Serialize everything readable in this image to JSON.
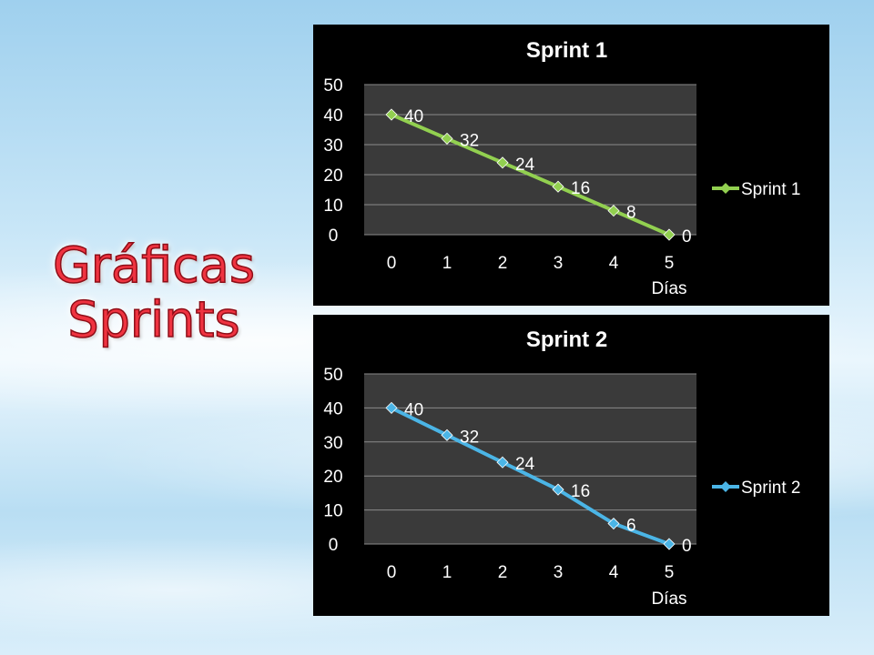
{
  "title": {
    "line1": "Gráficas",
    "line2": "Sprints"
  },
  "colors": {
    "title_fill": "#ef3340",
    "sprint1": "#92d050",
    "sprint2": "#4bb5e6",
    "plot_bg": "#3a3a3a",
    "panel_bg": "#000000"
  },
  "chart_data": [
    {
      "type": "line",
      "title": "Sprint 1",
      "xlabel": "Días",
      "ylabel": "",
      "x": [
        0,
        1,
        2,
        3,
        4,
        5
      ],
      "ylim": [
        0,
        50
      ],
      "yticks": [
        0,
        10,
        20,
        30,
        40,
        50
      ],
      "grid": true,
      "legend": "right",
      "series": [
        {
          "name": "Sprint 1",
          "values": [
            40,
            32,
            24,
            16,
            8,
            0
          ],
          "color": "#92d050"
        }
      ]
    },
    {
      "type": "line",
      "title": "Sprint 2",
      "xlabel": "Días",
      "ylabel": "",
      "x": [
        0,
        1,
        2,
        3,
        4,
        5
      ],
      "ylim": [
        0,
        50
      ],
      "yticks": [
        0,
        10,
        20,
        30,
        40,
        50
      ],
      "grid": true,
      "legend": "right",
      "series": [
        {
          "name": "Sprint 2",
          "values": [
            40,
            32,
            24,
            16,
            6,
            0
          ],
          "color": "#4bb5e6"
        }
      ]
    }
  ]
}
